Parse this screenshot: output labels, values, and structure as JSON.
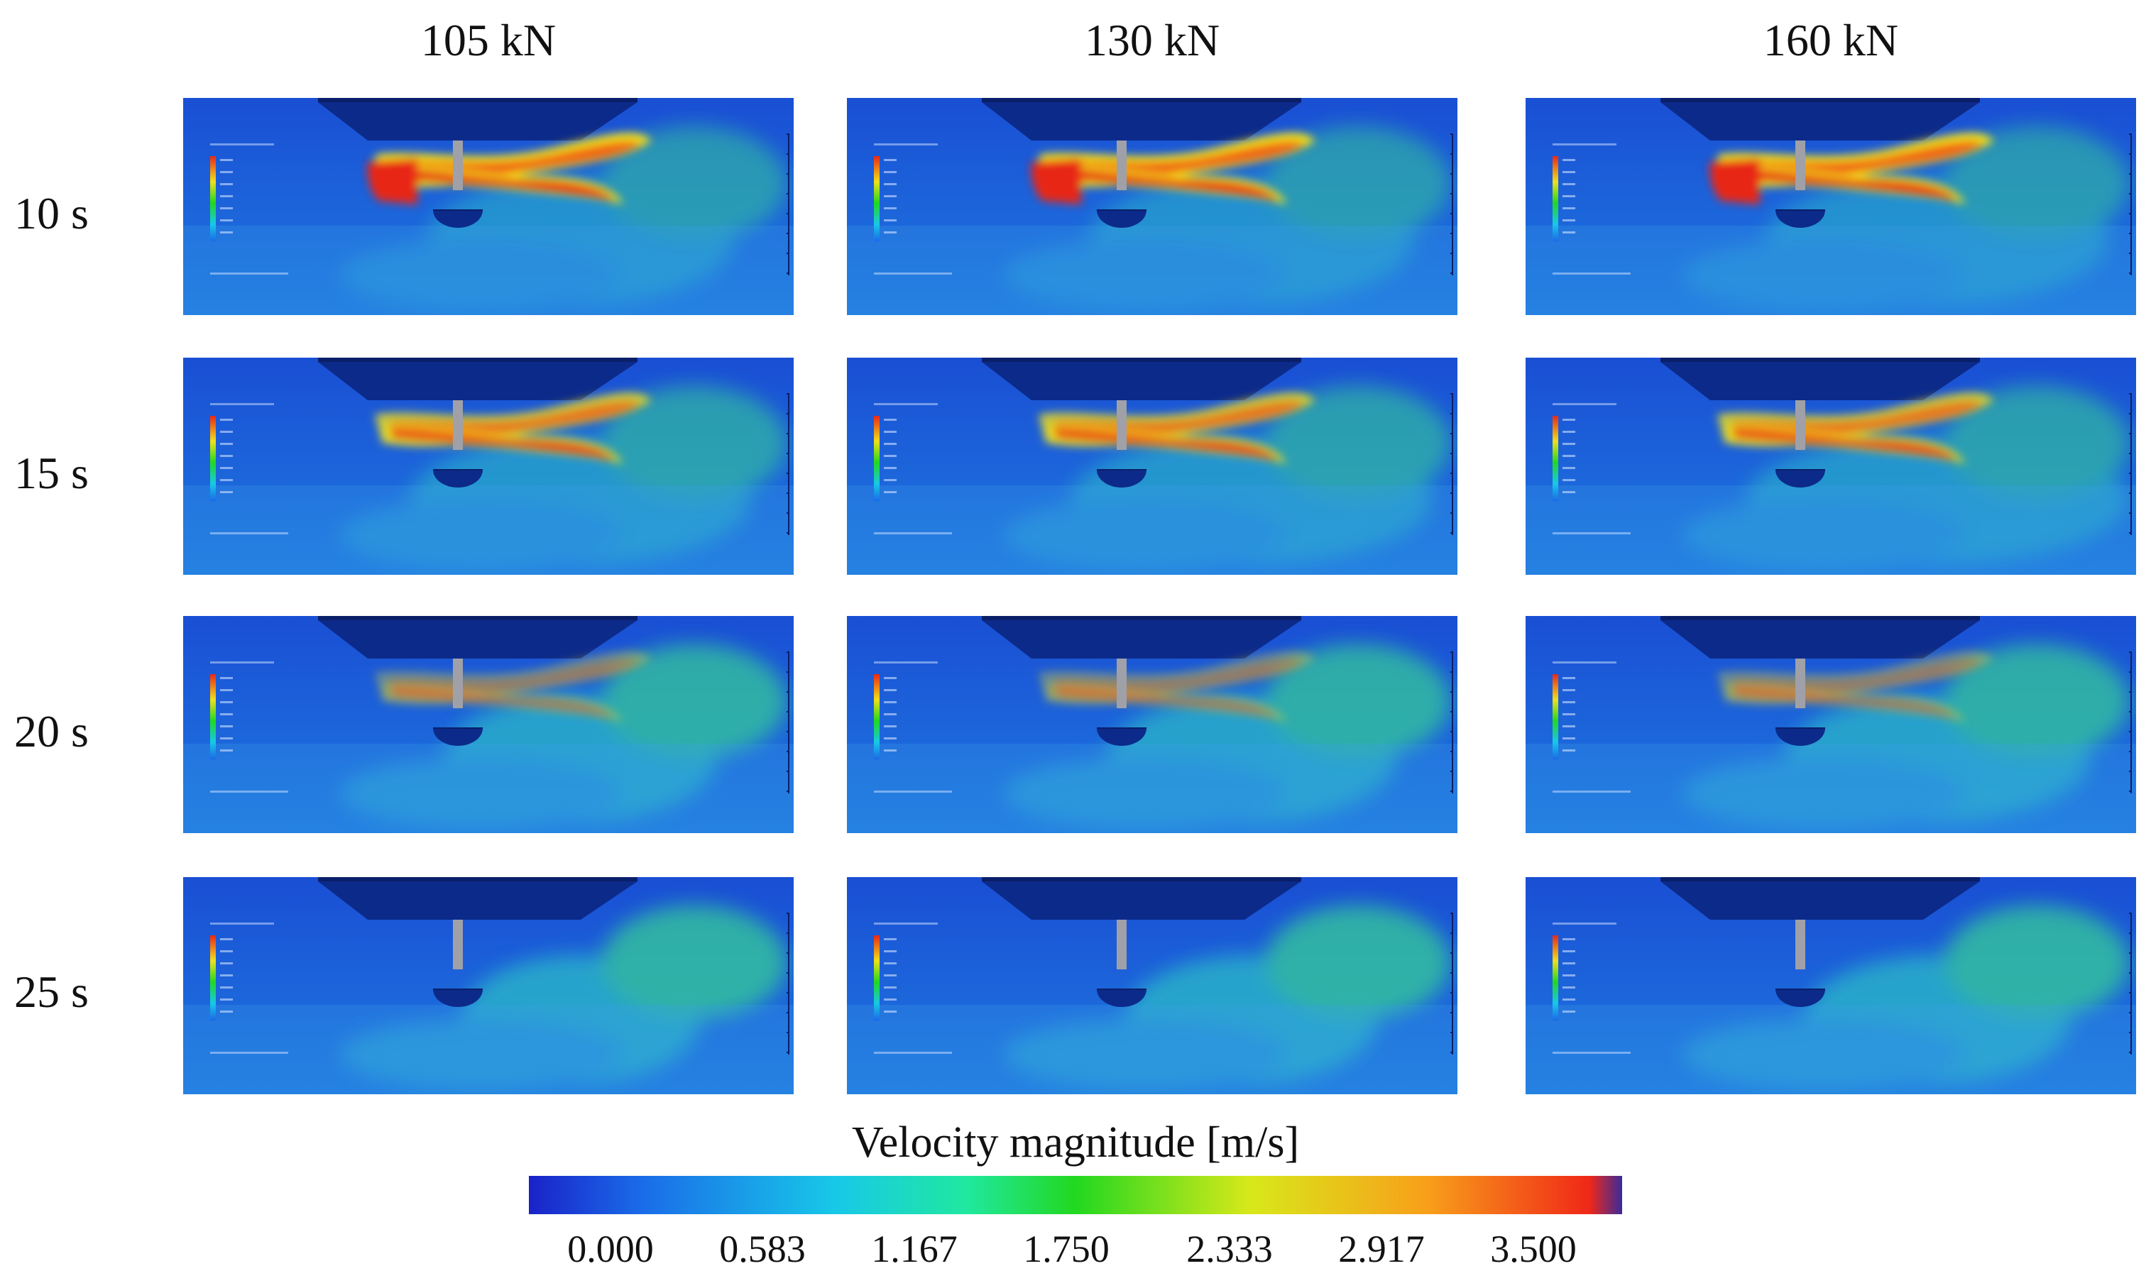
{
  "columns": [
    {
      "label": "105 kN"
    },
    {
      "label": "130 kN"
    },
    {
      "label": "160 kN"
    }
  ],
  "rows": [
    {
      "label": "10 s",
      "jet_intensity": 1.0,
      "spread": 0.9
    },
    {
      "label": "15 s",
      "jet_intensity": 0.8,
      "spread": 1.0
    },
    {
      "label": "20 s",
      "jet_intensity": 0.35,
      "spread": 0.8
    },
    {
      "label": "25 s",
      "jet_intensity": 0.25,
      "spread": 0.7
    }
  ],
  "colorbar": {
    "title": "Velocity magnitude [m/s]",
    "ticks": [
      "0.000",
      "0.583",
      "1.167",
      "1.750",
      "2.333",
      "2.917",
      "3.500"
    ],
    "min": 0.0,
    "max": 3.5,
    "stops": [
      "#1a22c8",
      "#1a6ae8",
      "#18c8e8",
      "#20e8a0",
      "#22d820",
      "#d8e81a",
      "#f8a01a",
      "#f02818",
      "#3a2a9a"
    ]
  }
}
